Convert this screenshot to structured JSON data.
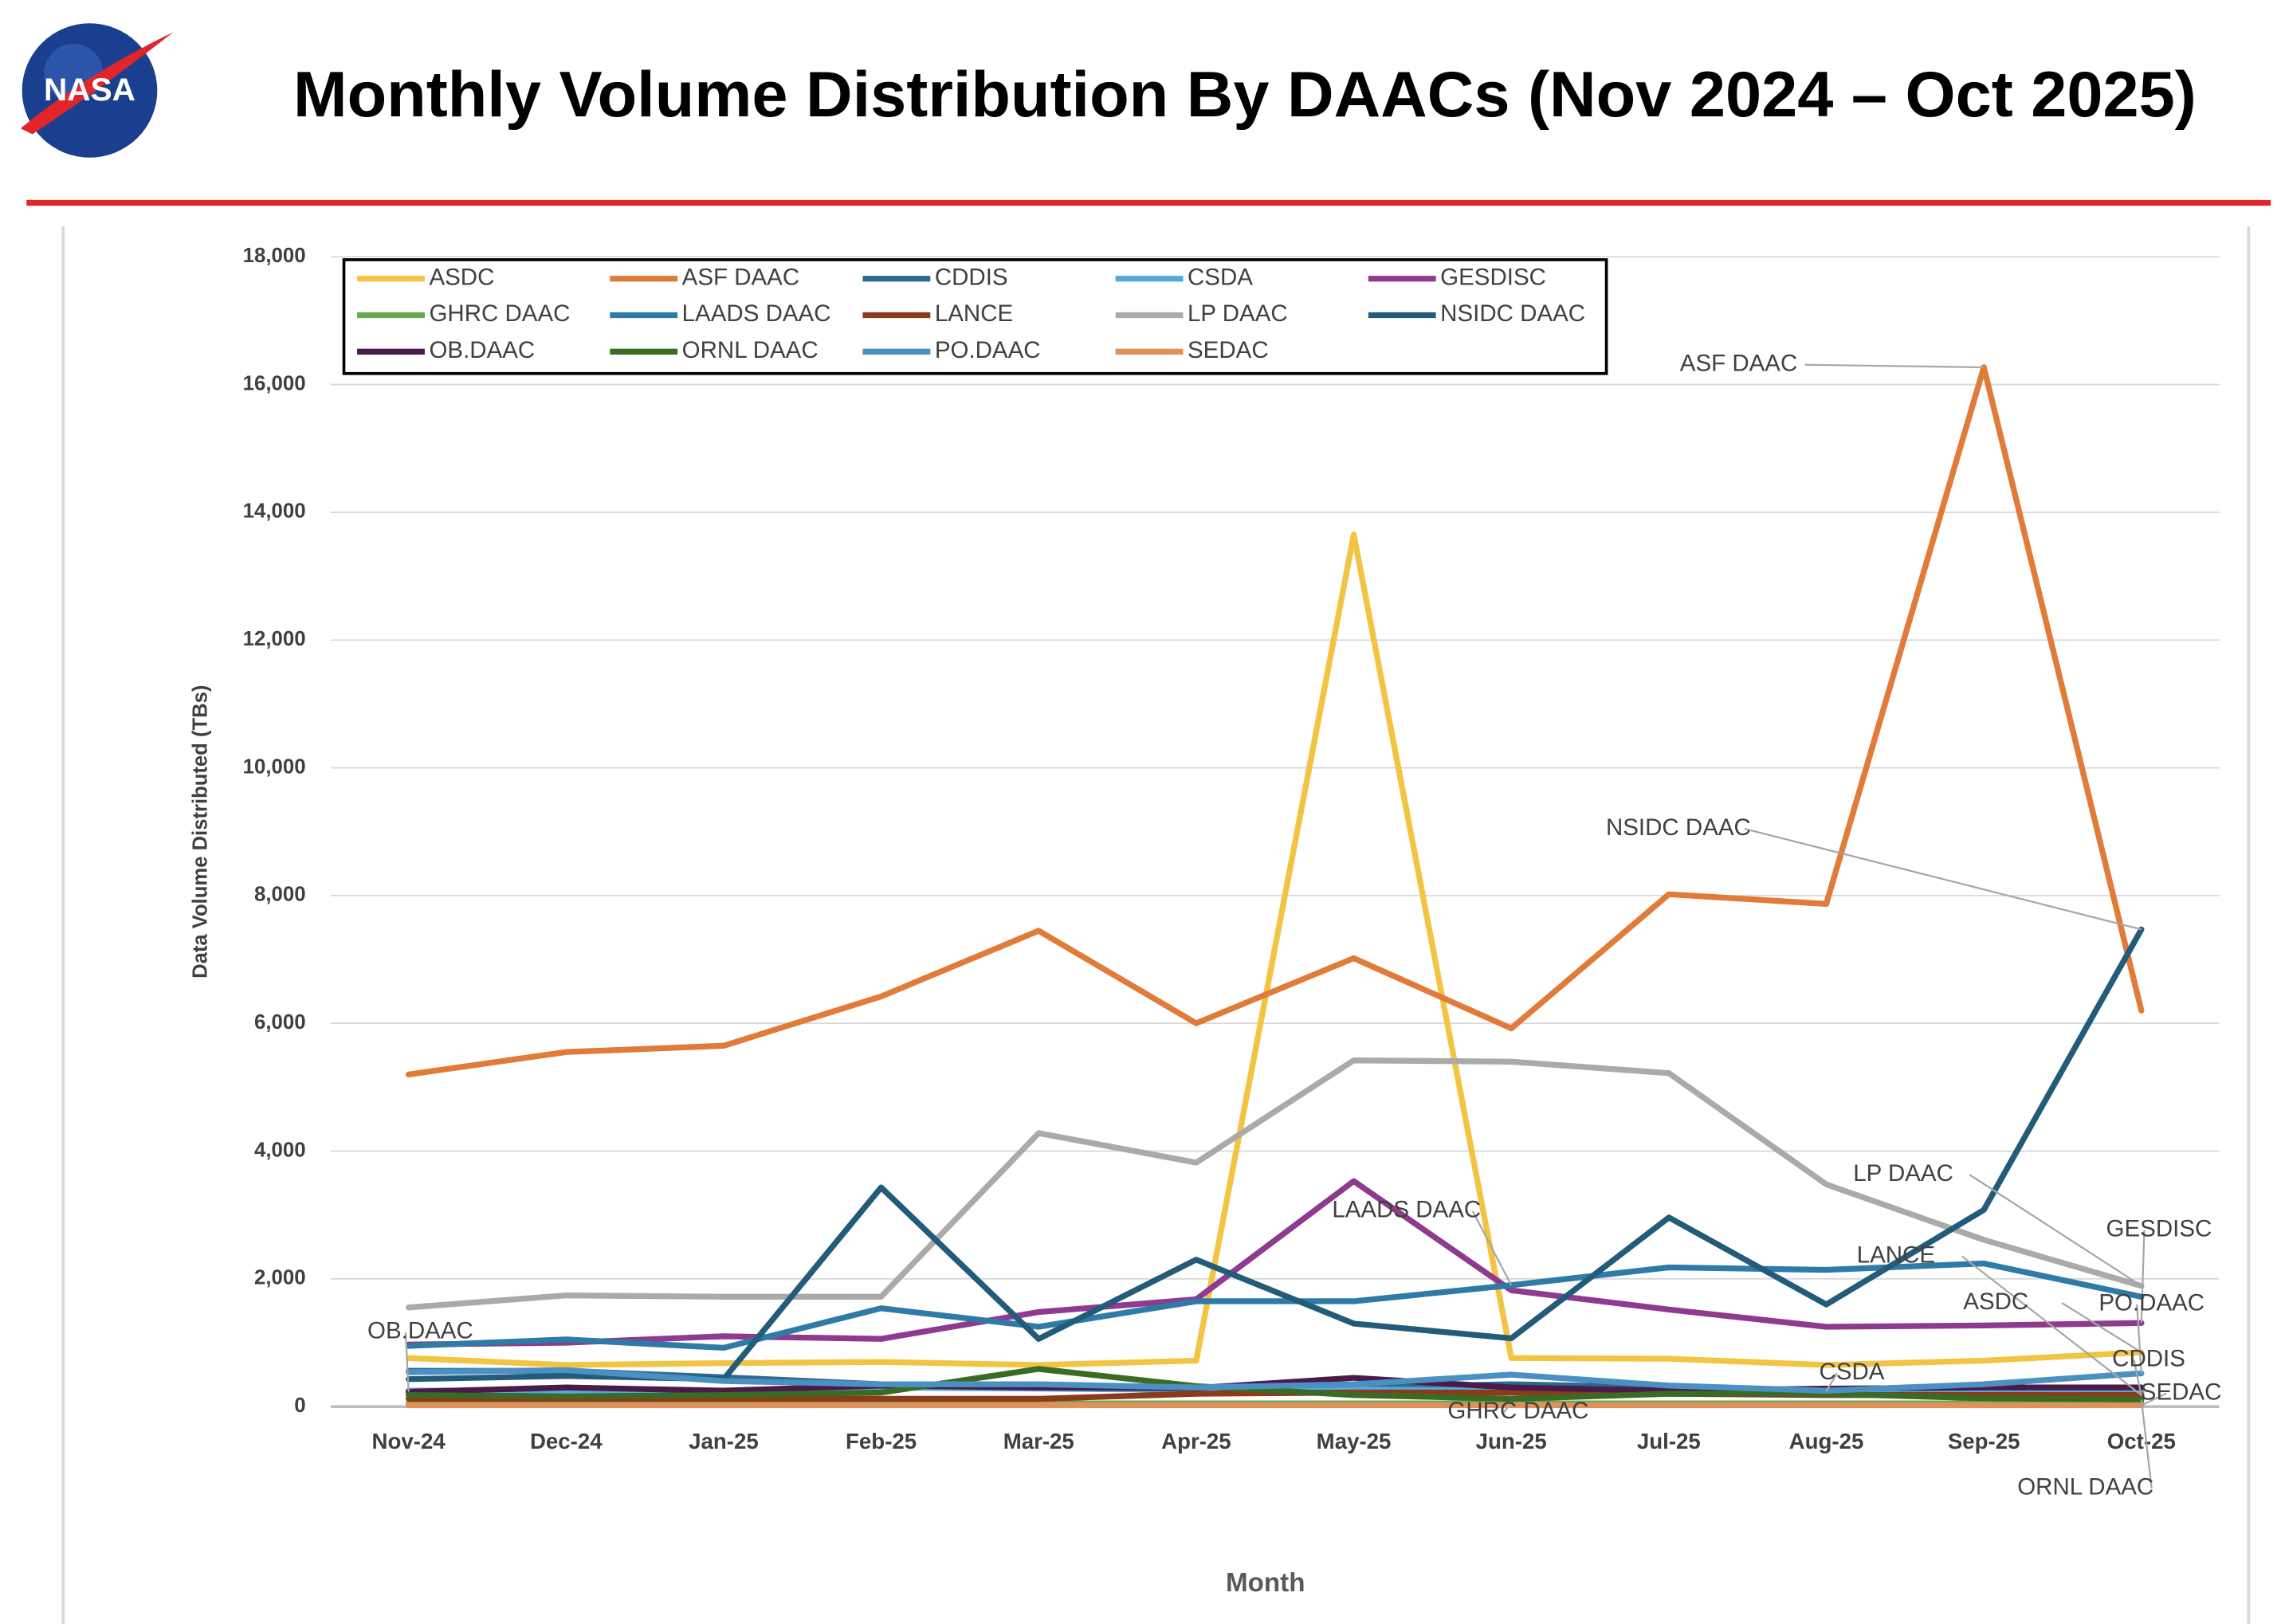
{
  "header": {
    "logo_text": "NASA",
    "title": "Monthly Volume Distribution By DAACs (Nov 2024 – Oct 2025)"
  },
  "chart_data": {
    "type": "line",
    "y_label": "Data Volume Distributed (TBs)",
    "x_label": "Month",
    "categories": [
      "Nov-24",
      "Dec-24",
      "Jan-25",
      "Feb-25",
      "Mar-25",
      "Apr-25",
      "May-25",
      "Jun-25",
      "Jul-25",
      "Aug-25",
      "Sep-25",
      "Oct-25"
    ],
    "ylim": [
      0,
      18000
    ],
    "yticks": [
      0,
      {
        "value": 2000,
        "label": "2,000"
      },
      {
        "value": 4000,
        "label": "4,000"
      },
      {
        "value": 6000,
        "label": "6,000"
      },
      {
        "value": 8000,
        "label": "8,000"
      },
      {
        "value": 10000,
        "label": "10,000"
      },
      {
        "value": 12000,
        "label": "12,000"
      },
      {
        "value": 14000,
        "label": "14,000"
      },
      {
        "value": 16000,
        "label": "16,000"
      },
      {
        "value": 18000,
        "label": "18,000"
      }
    ],
    "grid": true,
    "legend": "top-left",
    "series": [
      {
        "name": "ASDC",
        "color": "#f2c443",
        "values": [
          760,
          650,
          680,
          700,
          650,
          720,
          13650,
          760,
          750,
          650,
          720,
          850
        ]
      },
      {
        "name": "ASF DAAC",
        "color": "#e07b39",
        "values": [
          5200,
          5550,
          5650,
          6420,
          7450,
          6000,
          7020,
          5920,
          8020,
          7870,
          16270,
          6200
        ]
      },
      {
        "name": "CDDIS",
        "color": "#2e6a8e",
        "values": [
          560,
          560,
          460,
          350,
          320,
          300,
          300,
          350,
          300,
          200,
          180,
          160
        ]
      },
      {
        "name": "CSDA",
        "color": "#56a7dc",
        "values": [
          250,
          250,
          250,
          300,
          280,
          260,
          270,
          250,
          250,
          240,
          250,
          220
        ]
      },
      {
        "name": "GESDISC",
        "color": "#8e3a8e",
        "values": [
          970,
          1000,
          1100,
          1060,
          1480,
          1680,
          3530,
          1820,
          1520,
          1250,
          1270,
          1310
        ]
      },
      {
        "name": "GHRC DAAC",
        "color": "#6aa84f",
        "values": [
          50,
          50,
          50,
          50,
          50,
          50,
          50,
          50,
          50,
          50,
          50,
          50
        ]
      },
      {
        "name": "LAADS DAAC",
        "color": "#2f7aa6",
        "values": [
          950,
          1050,
          920,
          1540,
          1250,
          1650,
          1650,
          1900,
          2180,
          2140,
          2240,
          1720
        ]
      },
      {
        "name": "LANCE",
        "color": "#8b3a1a",
        "values": [
          120,
          120,
          120,
          120,
          120,
          200,
          220,
          220,
          200,
          180,
          180,
          180
        ]
      },
      {
        "name": "LP DAAC",
        "color": "#aaaaaa",
        "values": [
          1550,
          1740,
          1720,
          1720,
          4280,
          3820,
          5420,
          5400,
          5220,
          3480,
          2610,
          1890
        ]
      },
      {
        "name": "NSIDC DAAC",
        "color": "#235c7a",
        "values": [
          430,
          480,
          430,
          3430,
          1060,
          2300,
          1300,
          1070,
          2960,
          1600,
          3080,
          7470
        ]
      },
      {
        "name": "OB.DAAC",
        "color": "#4a1a4a",
        "values": [
          230,
          300,
          250,
          330,
          300,
          290,
          450,
          300,
          250,
          280,
          300,
          300
        ]
      },
      {
        "name": "ORNL DAAC",
        "color": "#3a6b25",
        "values": [
          180,
          160,
          180,
          220,
          590,
          320,
          180,
          120,
          200,
          200,
          130,
          110
        ]
      },
      {
        "name": "PO.DAAC",
        "color": "#4a90c2",
        "values": [
          540,
          570,
          400,
          350,
          350,
          300,
          350,
          500,
          330,
          250,
          350,
          520
        ]
      },
      {
        "name": "SEDAC",
        "color": "#e0915a",
        "values": [
          20,
          20,
          20,
          20,
          20,
          20,
          20,
          20,
          20,
          20,
          20,
          20
        ]
      }
    ],
    "annotations": [
      "ASF DAAC",
      "NSIDC DAAC",
      "LP DAAC",
      "GESDISC",
      "LANCE",
      "ASDC",
      "PO.DAAC",
      "CDDIS",
      "CSDA",
      "SEDAC",
      "ORNL DAAC",
      "GHRC DAAC",
      "LAADS DAAC",
      "OB.DAAC"
    ]
  }
}
